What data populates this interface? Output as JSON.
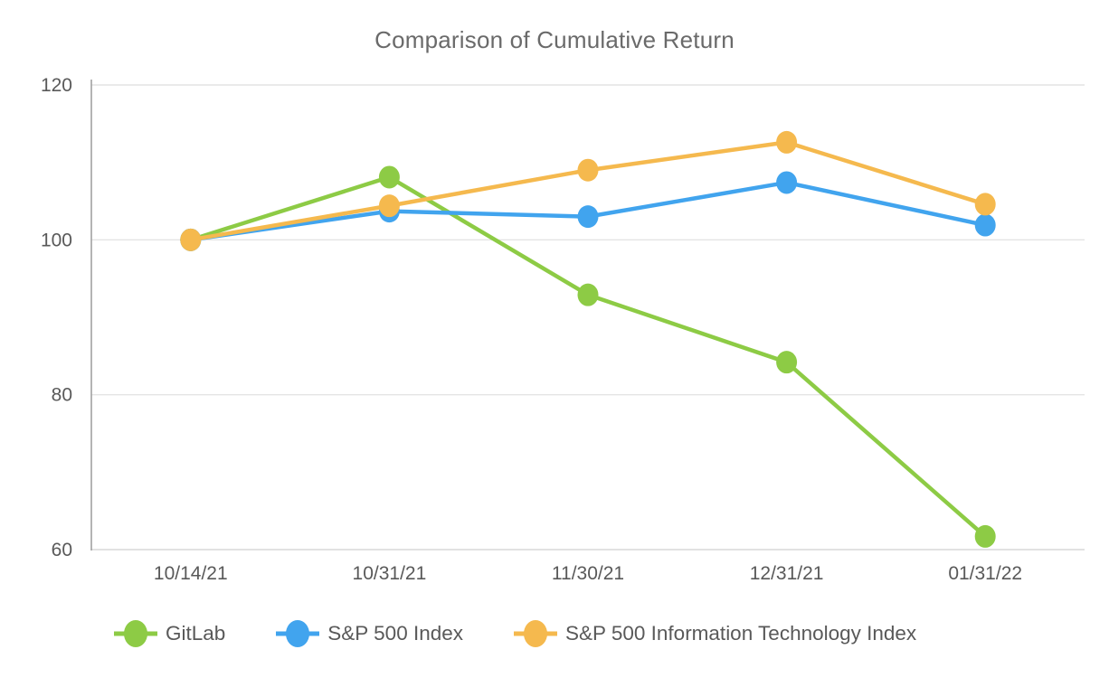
{
  "chart_data": {
    "type": "line",
    "title": "Comparison of Cumulative Return",
    "x_categories": [
      "10/14/21",
      "10/31/21",
      "11/30/21",
      "12/31/21",
      "01/31/22"
    ],
    "series": [
      {
        "name": "GitLab",
        "color": "#8dcb45",
        "values": [
          100,
          108.1,
          92.9,
          84.2,
          61.7
        ]
      },
      {
        "name": "S&P 500 Index",
        "color": "#41a4ee",
        "values": [
          100,
          103.7,
          103.0,
          107.4,
          101.9
        ]
      },
      {
        "name": "S&P 500 Information Technology Index",
        "color": "#f5b94e",
        "values": [
          100,
          104.4,
          109.0,
          112.6,
          104.6
        ]
      }
    ],
    "y_ticks": [
      120,
      100,
      80,
      60
    ],
    "ylim": [
      60,
      120
    ],
    "xlabel": "",
    "ylabel": "",
    "grid": "horizontal",
    "legend_position": "bottom",
    "style": {
      "grid_color": "#e4e4e4",
      "y_axis_color": "#9b9b9b",
      "x_axis_color": "#d9d9d9",
      "tick_text_color": "#595959",
      "title_color": "#6a6a6a"
    }
  }
}
